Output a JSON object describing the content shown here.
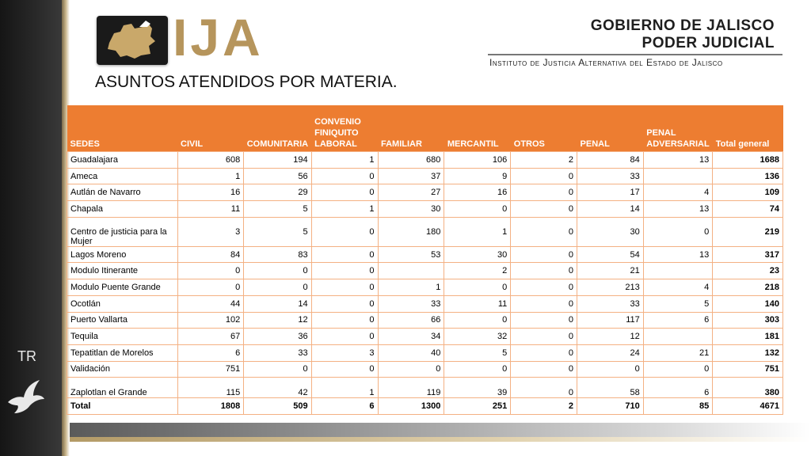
{
  "header": {
    "logo_text": "IJA",
    "gov_line1": "GOBIERNO DE JALISCO",
    "gov_line2": "PODER JUDICIAL",
    "institute": "Instituto de Justicia Alternativa del Estado de Jalisco"
  },
  "title": "ASUNTOS ATENDIDOS POR MATERIA.",
  "sidebar": {
    "label": "TR"
  },
  "table": {
    "columns": [
      "SEDES",
      "CIVIL",
      "COMUNITARIA",
      "CONVENIO FINIQUITO LABORAL",
      "FAMILIAR",
      "MERCANTIL",
      "OTROS",
      "PENAL",
      "PENAL ADVERSARIAL",
      "Total general"
    ],
    "rows": [
      [
        "Guadalajara",
        "608",
        "194",
        "1",
        "680",
        "106",
        "2",
        "84",
        "13",
        "1688"
      ],
      [
        "Ameca",
        "1",
        "56",
        "0",
        "37",
        "9",
        "0",
        "33",
        "",
        "136"
      ],
      [
        "Autlán de Navarro",
        "16",
        "29",
        "0",
        "27",
        "16",
        "0",
        "17",
        "4",
        "109"
      ],
      [
        "Chapala",
        "11",
        "5",
        "1",
        "30",
        "0",
        "0",
        "14",
        "13",
        "74"
      ],
      [
        "Centro de justicia para la Mujer",
        "3",
        "5",
        "0",
        "180",
        "1",
        "0",
        "30",
        "0",
        "219"
      ],
      [
        "Lagos Moreno",
        "84",
        "83",
        "0",
        "53",
        "30",
        "0",
        "54",
        "13",
        "317"
      ],
      [
        "Modulo Itinerante",
        "0",
        "0",
        "0",
        "",
        "2",
        "0",
        "21",
        "",
        "23"
      ],
      [
        "Modulo Puente Grande",
        "0",
        "0",
        "0",
        "1",
        "0",
        "0",
        "213",
        "4",
        "218"
      ],
      [
        "Ocotlán",
        "44",
        "14",
        "0",
        "33",
        "11",
        "0",
        "33",
        "5",
        "140"
      ],
      [
        "Puerto Vallarta",
        "102",
        "12",
        "0",
        "66",
        "0",
        "0",
        "117",
        "6",
        "303"
      ],
      [
        "Tequila",
        "67",
        "36",
        "0",
        "34",
        "32",
        "0",
        "12",
        "",
        "181"
      ],
      [
        "Tepatitlan de Morelos",
        "6",
        "33",
        "3",
        "40",
        "5",
        "0",
        "24",
        "21",
        "132"
      ],
      [
        "Validación",
        "751",
        "0",
        "0",
        "0",
        "0",
        "0",
        "0",
        "0",
        "751"
      ],
      [
        "Zaplotlan el Grande",
        "115",
        "42",
        "1",
        "119",
        "39",
        "0",
        "58",
        "6",
        "380"
      ]
    ],
    "total": [
      "Total",
      "1808",
      "509",
      "6",
      "1300",
      "251",
      "2",
      "710",
      "85",
      "4671"
    ]
  },
  "colors": {
    "header_orange": "#ed7d31",
    "border_peach": "#f4b183",
    "logo_gold": "#b6955c"
  },
  "icons": [
    "jalisco-map-logo-icon",
    "dove-icon"
  ]
}
